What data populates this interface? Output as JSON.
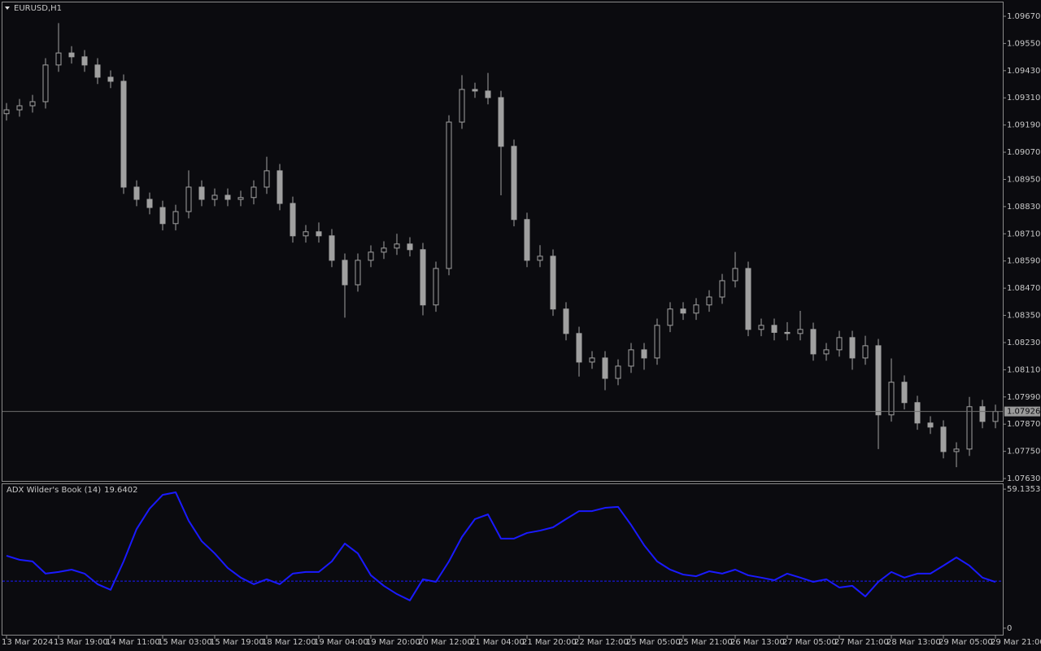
{
  "chart_data": [
    {
      "type": "candlestick",
      "title": "EURUSD,H1",
      "color": "#a0a0a0",
      "categories": [
        "13 Mar 2024",
        null,
        null,
        null,
        "13 Mar 19:00",
        null,
        null,
        null,
        "14 Mar 11:00",
        null,
        null,
        null,
        "15 Mar 03:00",
        null,
        null,
        null,
        "15 Mar 19:00",
        null,
        null,
        null,
        "18 Mar 12:00",
        null,
        null,
        null,
        "19 Mar 04:00",
        null,
        null,
        null,
        "19 Mar 20:00",
        null,
        null,
        null,
        "20 Mar 12:00",
        null,
        null,
        null,
        "21 Mar 04:00",
        null,
        null,
        null,
        "21 Mar 20:00",
        null,
        null,
        null,
        "22 Mar 12:00",
        null,
        null,
        null,
        "25 Mar 05:00",
        null,
        null,
        null,
        "25 Mar 21:00",
        null,
        null,
        null,
        "26 Mar 13:00",
        null,
        null,
        null,
        "27 Mar 05:00",
        null,
        null,
        null,
        "27 Mar 21:00",
        null,
        null,
        null,
        "28 Mar 13:00",
        null,
        null,
        null,
        "29 Mar 05:00",
        null,
        null,
        null,
        "29 Mar 21:00"
      ],
      "open": [
        1.0924,
        1.09257,
        1.09275,
        1.09293,
        1.09455,
        1.09508,
        1.09491,
        1.09455,
        1.09401,
        1.09383,
        1.08916,
        1.08862,
        1.08826,
        1.08755,
        1.08808,
        1.08916,
        1.08862,
        1.0888,
        1.08862,
        1.0887,
        1.08916,
        1.08988,
        1.08844,
        1.08701,
        1.08719,
        1.08701,
        1.08593,
        1.08485,
        1.08593,
        1.08629,
        1.08647,
        1.08665,
        1.0864,
        1.08396,
        1.08557,
        1.09203,
        1.09347,
        1.0934,
        1.09311,
        1.09096,
        1.08773,
        1.08593,
        1.08611,
        1.08378,
        1.0827,
        1.08144,
        1.08162,
        1.08072,
        1.08126,
        1.08198,
        1.08162,
        1.08306,
        1.08378,
        1.0836,
        1.08396,
        1.08431,
        1.08503,
        1.08557,
        1.08288,
        1.08306,
        1.08275,
        1.0827,
        1.08288,
        1.0818,
        1.08198,
        1.08252,
        1.08162,
        1.08216,
        1.07911,
        1.08055,
        1.07965,
        1.07875,
        1.07857,
        1.07749,
        1.0776,
        1.07947,
        1.07882
      ],
      "high": [
        1.09287,
        1.09305,
        1.09323,
        1.09485,
        1.0964,
        1.09538,
        1.09521,
        1.09485,
        1.09431,
        1.09413,
        1.08946,
        1.08892,
        1.08856,
        1.08838,
        1.0899,
        1.08946,
        1.0891,
        1.0891,
        1.089,
        1.08946,
        1.0905,
        1.09018,
        1.08874,
        1.08749,
        1.0876,
        1.08731,
        1.08623,
        1.08623,
        1.08659,
        1.08677,
        1.0871,
        1.08695,
        1.0867,
        1.08587,
        1.09233,
        1.0941,
        1.09377,
        1.0942,
        1.09341,
        1.09126,
        1.08803,
        1.0866,
        1.08641,
        1.08408,
        1.083,
        1.08192,
        1.08192,
        1.08156,
        1.08228,
        1.08228,
        1.08336,
        1.08408,
        1.08408,
        1.08426,
        1.08461,
        1.08533,
        1.0863,
        1.08587,
        1.08336,
        1.08336,
        1.0832,
        1.0837,
        1.08318,
        1.08228,
        1.08282,
        1.08282,
        1.0826,
        1.08246,
        1.0816,
        1.08085,
        1.07995,
        1.07905,
        1.07887,
        1.0779,
        1.0799,
        1.07977,
        1.07956
      ],
      "low": [
        1.0921,
        1.09227,
        1.09245,
        1.09263,
        1.09425,
        1.09461,
        1.09425,
        1.09371,
        1.09353,
        1.08886,
        1.08832,
        1.08796,
        1.08725,
        1.08725,
        1.08778,
        1.08832,
        1.08832,
        1.08832,
        1.08832,
        1.0884,
        1.08886,
        1.08814,
        1.08671,
        1.08671,
        1.08671,
        1.08563,
        1.0834,
        1.08455,
        1.08563,
        1.08599,
        1.08617,
        1.0861,
        1.0835,
        1.08366,
        1.08527,
        1.09173,
        1.0931,
        1.09281,
        1.0888,
        1.08743,
        1.08563,
        1.08563,
        1.08348,
        1.0824,
        1.0808,
        1.08114,
        1.0802,
        1.08042,
        1.08096,
        1.0811,
        1.08132,
        1.08276,
        1.0833,
        1.0833,
        1.08366,
        1.08401,
        1.08473,
        1.08258,
        1.08258,
        1.0824,
        1.0824,
        1.0824,
        1.0815,
        1.0815,
        1.08168,
        1.0811,
        1.08132,
        1.0776,
        1.07881,
        1.07935,
        1.07845,
        1.07827,
        1.07719,
        1.0768,
        1.0773,
        1.07852,
        1.07852
      ],
      "close": [
        1.09257,
        1.09275,
        1.09293,
        1.09455,
        1.09508,
        1.09491,
        1.09455,
        1.09401,
        1.09383,
        1.08916,
        1.08862,
        1.08826,
        1.08755,
        1.08808,
        1.08916,
        1.08862,
        1.0888,
        1.08862,
        1.0887,
        1.08916,
        1.08988,
        1.08844,
        1.08701,
        1.08719,
        1.08701,
        1.08593,
        1.08485,
        1.08593,
        1.08629,
        1.08647,
        1.08665,
        1.0864,
        1.08396,
        1.08557,
        1.09203,
        1.09347,
        1.0934,
        1.09311,
        1.09096,
        1.08773,
        1.08593,
        1.08611,
        1.08378,
        1.0827,
        1.08144,
        1.08162,
        1.08072,
        1.08126,
        1.08198,
        1.08162,
        1.08306,
        1.08378,
        1.0836,
        1.08396,
        1.08431,
        1.08503,
        1.08557,
        1.08288,
        1.08306,
        1.08275,
        1.0827,
        1.08288,
        1.0818,
        1.08198,
        1.08252,
        1.08162,
        1.08216,
        1.07911,
        1.08055,
        1.07965,
        1.07875,
        1.07857,
        1.07749,
        1.0776,
        1.07947,
        1.07882,
        1.07926
      ],
      "current_price": 1.07926,
      "ylim": [
        1.07623,
        1.09731
      ],
      "yticks": [
        {
          "value": 1.0967,
          "label": "1.09670"
        },
        {
          "value": 1.0955,
          "label": "1.09550"
        },
        {
          "value": 1.0943,
          "label": "1.09430"
        },
        {
          "value": 1.0931,
          "label": "1.09310"
        },
        {
          "value": 1.0919,
          "label": "1.09190"
        },
        {
          "value": 1.0907,
          "label": "1.09070"
        },
        {
          "value": 1.0895,
          "label": "1.08950"
        },
        {
          "value": 1.0883,
          "label": "1.08830"
        },
        {
          "value": 1.0871,
          "label": "1.08710"
        },
        {
          "value": 1.0859,
          "label": "1.08590"
        },
        {
          "value": 1.0847,
          "label": "1.08470"
        },
        {
          "value": 1.0835,
          "label": "1.08350"
        },
        {
          "value": 1.0823,
          "label": "1.08230"
        },
        {
          "value": 1.0811,
          "label": "1.08110"
        },
        {
          "value": 1.0799,
          "label": "1.07990"
        },
        {
          "value": 1.0787,
          "label": "1.07870"
        },
        {
          "value": 1.0775,
          "label": "1.07750"
        },
        {
          "value": 1.0763,
          "label": "1.07630"
        }
      ]
    },
    {
      "type": "line",
      "title": "ADX Wilder's Book (14)",
      "color": "#1a1aff",
      "level": 20,
      "values": [
        30.8,
        29.1,
        28.4,
        23.2,
        23.9,
        24.9,
        23.2,
        18.7,
        16.3,
        28.4,
        42.2,
        50.9,
        56.7,
        57.8,
        45.7,
        37.0,
        31.8,
        25.6,
        21.5,
        18.7,
        20.8,
        18.7,
        23.2,
        23.9,
        23.9,
        28.4,
        36.0,
        31.8,
        22.5,
        18.0,
        14.5,
        11.8,
        20.8,
        19.7,
        28.4,
        38.8,
        46.4,
        48.4,
        38.1,
        38.1,
        40.5,
        41.5,
        42.9,
        46.4,
        49.8,
        49.8,
        51.2,
        51.6,
        43.9,
        35.3,
        28.4,
        24.9,
        22.8,
        22.1,
        24.2,
        23.2,
        24.9,
        22.5,
        21.5,
        20.4,
        23.2,
        21.5,
        19.7,
        20.8,
        17.3,
        18.0,
        13.5,
        19.7,
        23.9,
        21.5,
        23.2,
        23.2,
        26.6,
        30.1,
        26.6,
        21.5,
        19.6402
      ],
      "ylim": [
        -2.8,
        61.6
      ],
      "yticks": [
        59.1353,
        0
      ]
    }
  ]
}
